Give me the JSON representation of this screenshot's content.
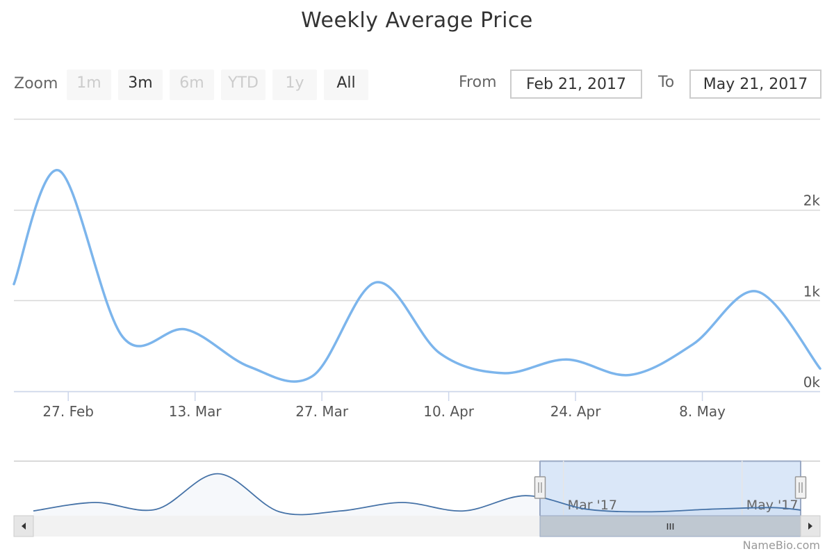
{
  "title": "Weekly Average Price",
  "zoom": {
    "label": "Zoom",
    "buttons": [
      {
        "label": "1m",
        "enabled": false
      },
      {
        "label": "3m",
        "enabled": true
      },
      {
        "label": "6m",
        "enabled": false
      },
      {
        "label": "YTD",
        "enabled": false
      },
      {
        "label": "1y",
        "enabled": false
      },
      {
        "label": "All",
        "enabled": true
      }
    ]
  },
  "range": {
    "from_label": "From",
    "from_value": "Feb 21, 2017",
    "to_label": "To",
    "to_value": "May 21, 2017"
  },
  "credits": "NameBio.com",
  "colors": {
    "series": "#7cb5ec",
    "navigator_series": "#4572a7",
    "navigator_mask": "#dae7f8",
    "grid": "#d8d8d8"
  },
  "chart_data": {
    "type": "line",
    "title": "Weekly Average Price",
    "xlabel": "",
    "ylabel": "",
    "ylim": [
      0,
      3000
    ],
    "y_ticks": [
      0,
      1000,
      2000
    ],
    "y_tick_labels": [
      "0k",
      "1k",
      "2k"
    ],
    "x_range": [
      "2017-02-21",
      "2017-05-21"
    ],
    "x_ticks": [
      "2017-02-27",
      "2017-03-13",
      "2017-03-27",
      "2017-04-10",
      "2017-04-24",
      "2017-05-08"
    ],
    "x_tick_labels": [
      "27. Feb",
      "13. Mar",
      "27. Mar",
      "10. Apr",
      "24. Apr",
      "8. May"
    ],
    "grid": true,
    "series": [
      {
        "x": [
          "2017-02-21",
          "2017-02-26",
          "2017-03-05",
          "2017-03-12",
          "2017-03-19",
          "2017-03-26",
          "2017-04-02",
          "2017-04-09",
          "2017-04-16",
          "2017-04-23",
          "2017-04-30",
          "2017-05-07",
          "2017-05-14",
          "2017-05-21"
        ],
        "values": [
          1180,
          2430,
          600,
          680,
          270,
          170,
          1200,
          420,
          200,
          350,
          180,
          520,
          1100,
          250
        ]
      }
    ],
    "navigator": {
      "labels": [
        "Mar '17",
        "May '17"
      ],
      "x_range": [
        "2016-09-01",
        "2017-05-21"
      ],
      "label_dates": [
        "2017-03-01",
        "2017-05-01"
      ],
      "selected": [
        "2017-02-21",
        "2017-05-21"
      ],
      "series": {
        "x": [
          "2016-09-01",
          "2016-09-22",
          "2016-10-13",
          "2016-11-03",
          "2016-11-24",
          "2016-12-15",
          "2017-01-05",
          "2017-01-26",
          "2017-02-16",
          "2017-03-09",
          "2017-03-30",
          "2017-04-20",
          "2017-05-11",
          "2017-05-21"
        ],
        "values": [
          200,
          700,
          300,
          2400,
          150,
          200,
          700,
          200,
          1100,
          300,
          150,
          300,
          400,
          250
        ]
      }
    }
  }
}
